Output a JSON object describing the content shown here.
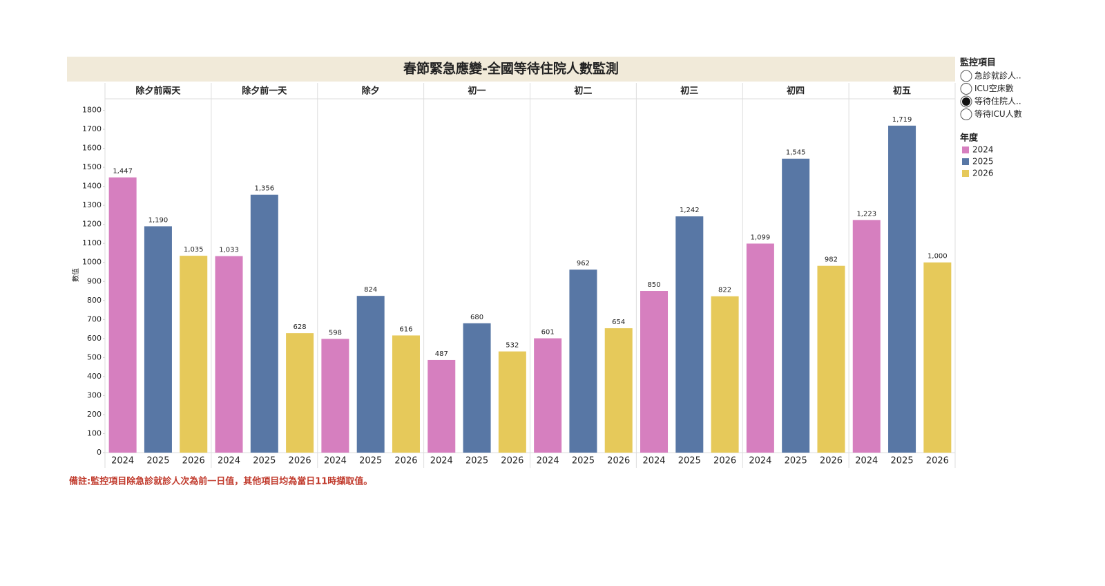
{
  "chart_data": {
    "type": "bar",
    "title": "春節緊急應變-全國等待住院人數監測",
    "categories": [
      "除夕前兩天",
      "除夕前一天",
      "除夕",
      "初一",
      "初二",
      "初三",
      "初四",
      "初五"
    ],
    "series": [
      {
        "name": "2024",
        "color": "#d67fbf",
        "values": [
          1447,
          1033,
          598,
          487,
          601,
          850,
          1099,
          1223
        ],
        "value_labels": [
          "1,447",
          "1,033",
          "598",
          "487",
          "601",
          "850",
          "1,099",
          "1,223"
        ]
      },
      {
        "name": "2025",
        "color": "#5877a5",
        "values": [
          1190,
          1356,
          824,
          680,
          962,
          1242,
          1545,
          1719
        ],
        "value_labels": [
          "1,190",
          "1,356",
          "824",
          "680",
          "962",
          "1,242",
          "1,545",
          "1,719"
        ]
      },
      {
        "name": "2026",
        "color": "#e6c95a",
        "values": [
          1035,
          628,
          616,
          532,
          654,
          822,
          982,
          1000
        ],
        "value_labels": [
          "1,035",
          "628",
          "616",
          "532",
          "654",
          "822",
          "982",
          "1,000"
        ]
      }
    ],
    "y_label": "數值",
    "ylim": [
      0,
      1860
    ],
    "yticks": [
      0,
      100,
      200,
      300,
      400,
      500,
      600,
      700,
      800,
      900,
      1000,
      1100,
      1200,
      1300,
      1400,
      1500,
      1600,
      1700,
      1800
    ],
    "legend_title": "年度",
    "filter": {
      "title": "監控項目",
      "options": [
        "急診就診人..",
        "ICU空床數",
        "等待住院人..",
        "等待ICU人數"
      ],
      "selected": 2
    },
    "note": "備註:監控項目除急診就診人次為前一日值，其他項目均為當日11時擷取值。"
  }
}
